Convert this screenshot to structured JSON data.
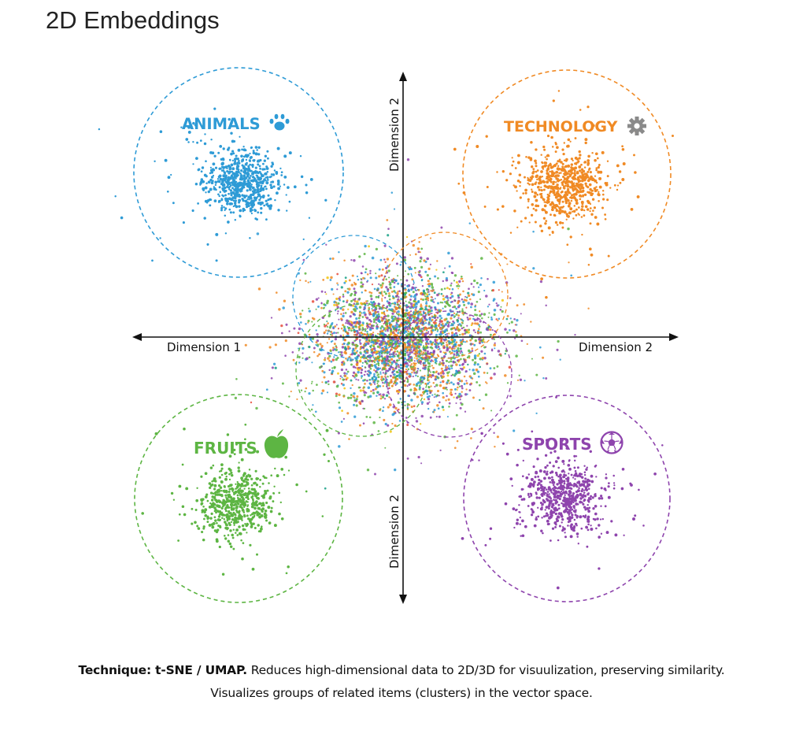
{
  "title": "2D Embeddings",
  "axes": {
    "x_left_label": "Dimension 1",
    "x_right_label": "Dimension 2",
    "y_top_label": "Dimension 2",
    "y_bottom_label": "Dimension 2"
  },
  "clusters": [
    {
      "id": "animals",
      "label": "ANIMALS",
      "icon": "paw-icon",
      "color": "#2e9bd6"
    },
    {
      "id": "technology",
      "label": "TECHNOLOGY",
      "icon": "gear-icon",
      "color": "#f08a24",
      "icon_color": "#8a8a8a"
    },
    {
      "id": "fruits",
      "label": "FRUITS",
      "icon": "apple-icon",
      "color": "#5db543"
    },
    {
      "id": "sports",
      "label": "SPORTS",
      "icon": "soccer-ball-icon",
      "color": "#8e44ad"
    }
  ],
  "caption": {
    "technique_label": "Technique: t-SNE / UMAP.",
    "line1_rest": " Reduces high-dimensional data to 2D/3D for visuulization, preserving similarity.",
    "line2": "Visualizes groups of related items (clusters) in the vector space."
  }
}
